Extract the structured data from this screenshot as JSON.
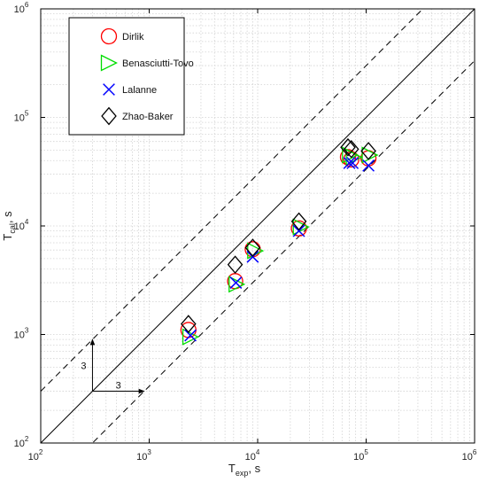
{
  "chart_data": {
    "type": "scatter",
    "xscale": "log",
    "yscale": "log",
    "xlim": [
      100,
      1000000
    ],
    "ylim": [
      100,
      1000000
    ],
    "grid": true,
    "legend_position": "top-left",
    "xlabel": {
      "main": "T",
      "sub": "exp",
      "unit": ", s"
    },
    "ylabel": {
      "main": "T",
      "sub": "cal",
      "unit": ", s"
    },
    "tick_base": "10",
    "tick_exponents": [
      "2",
      "3",
      "4",
      "5",
      "6"
    ],
    "reference_lines": [
      {
        "kind": "solid",
        "factor": 1
      },
      {
        "kind": "dashed",
        "factor": 3
      },
      {
        "kind": "dashed",
        "factor": 0.3333
      }
    ],
    "annotations": [
      {
        "text": "3",
        "direction": "vertical",
        "x": 300,
        "y_from": 300,
        "y_to": 900
      },
      {
        "text": "3",
        "direction": "horizontal",
        "y": 300,
        "x_from": 300,
        "x_to": 900
      }
    ],
    "series": [
      {
        "name": "Dirlik",
        "marker": "circle",
        "color": "#ff0000",
        "points": [
          [
            2300,
            1100
          ],
          [
            6200,
            3100
          ],
          [
            9000,
            6100
          ],
          [
            24000,
            9500
          ],
          [
            68000,
            43000
          ],
          [
            73000,
            41000
          ],
          [
            105000,
            42000
          ]
        ]
      },
      {
        "name": "Benasciutti-Tovo",
        "marker": "triangle-right",
        "color": "#00dd00",
        "points": [
          [
            2400,
            950
          ],
          [
            6400,
            2900
          ],
          [
            9500,
            5900
          ],
          [
            25000,
            9800
          ],
          [
            71000,
            45000
          ],
          [
            77000,
            43000
          ],
          [
            108000,
            45000
          ]
        ]
      },
      {
        "name": "Lalanne",
        "marker": "x",
        "color": "#0000ff",
        "points": [
          [
            2400,
            980
          ],
          [
            6300,
            3000
          ],
          [
            9000,
            5200
          ],
          [
            24000,
            9000
          ],
          [
            70000,
            38000
          ],
          [
            75000,
            38000
          ],
          [
            105000,
            36000
          ]
        ]
      },
      {
        "name": "Zhao-Baker",
        "marker": "diamond",
        "color": "#000000",
        "points": [
          [
            2300,
            1250
          ],
          [
            6200,
            4400
          ],
          [
            9000,
            6300
          ],
          [
            24000,
            11000
          ],
          [
            68000,
            53000
          ],
          [
            73000,
            51000
          ],
          [
            105000,
            49000
          ]
        ]
      }
    ]
  }
}
